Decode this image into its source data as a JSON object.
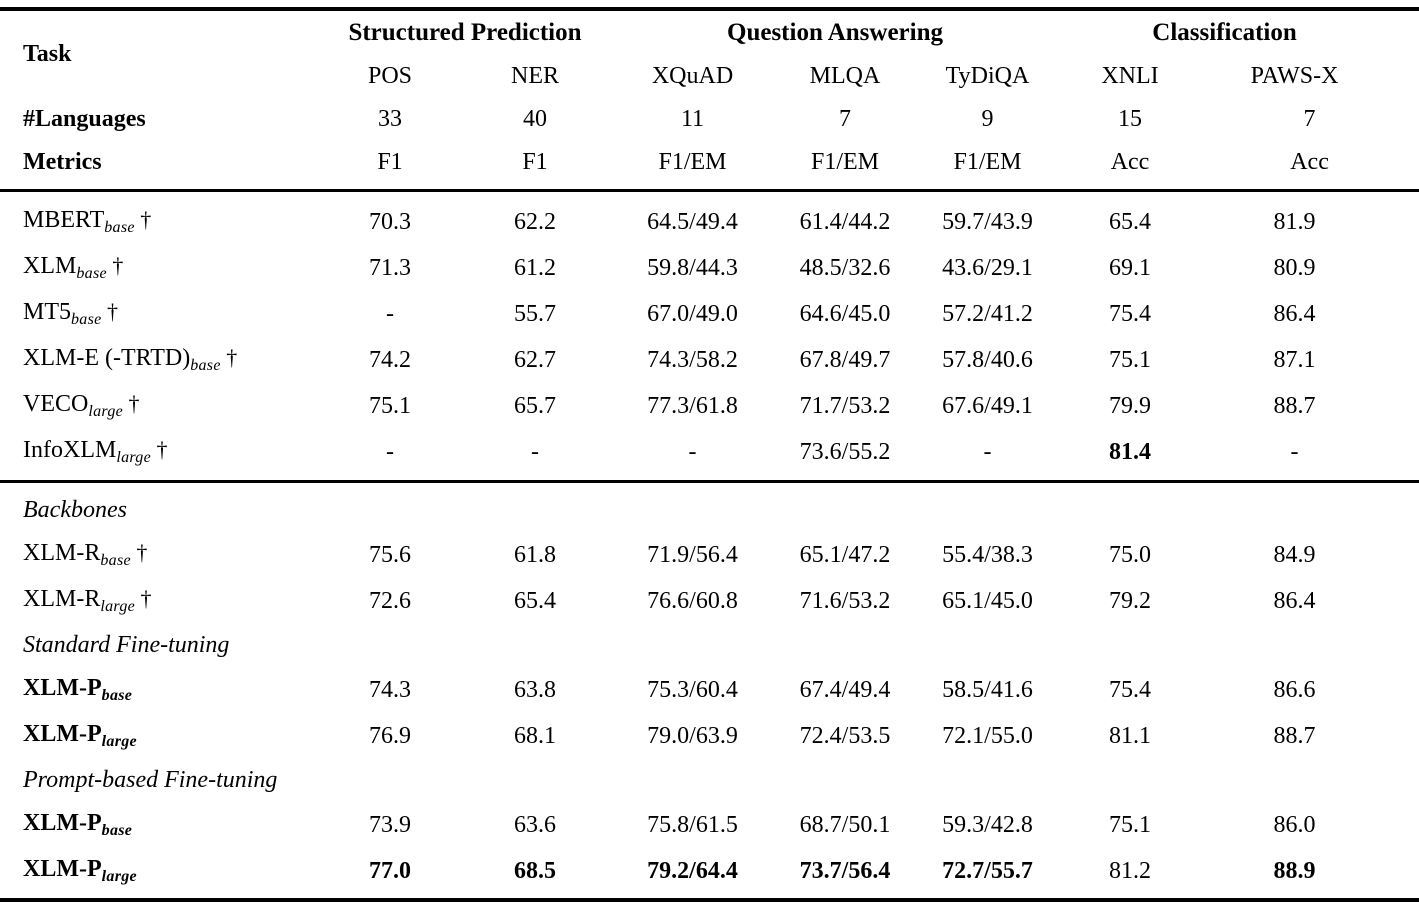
{
  "page": {
    "background": "#ffffff",
    "text_color": "#000000",
    "rule_color": "#000000"
  },
  "table": {
    "header": {
      "task_label": "Task",
      "languages_label": "#Languages",
      "metrics_label": "Metrics",
      "groups": [
        {
          "label": "Structured Prediction",
          "span": 2
        },
        {
          "label": "Question Answering",
          "span": 3
        },
        {
          "label": "Classification",
          "span": 2
        }
      ],
      "columns": [
        {
          "name": "POS",
          "languages": "33",
          "metric": "F1"
        },
        {
          "name": "NER",
          "languages": "40",
          "metric": "F1"
        },
        {
          "name": "XQuAD",
          "languages": "11",
          "metric": "F1/EM"
        },
        {
          "name": "MLQA",
          "languages": "7",
          "metric": "F1/EM"
        },
        {
          "name": "TyDiQA",
          "languages": "9",
          "metric": "F1/EM"
        },
        {
          "name": "XNLI",
          "languages": "15",
          "metric": "Acc"
        },
        {
          "name": "PAWS-X",
          "languages": "7",
          "metric": "Acc"
        }
      ]
    },
    "sections": [
      {
        "rows": [
          {
            "type": "model",
            "name": "MBERT",
            "subscript": "base",
            "dagger": true,
            "name_bold": false,
            "values": [
              {
                "text": "70.3"
              },
              {
                "text": "62.2"
              },
              {
                "text": "64.5/49.4"
              },
              {
                "text": "61.4/44.2"
              },
              {
                "text": "59.7/43.9"
              },
              {
                "text": "65.4"
              },
              {
                "text": "81.9"
              }
            ]
          },
          {
            "type": "model",
            "name": "XLM",
            "subscript": "base",
            "dagger": true,
            "name_bold": false,
            "values": [
              {
                "text": "71.3"
              },
              {
                "text": "61.2"
              },
              {
                "text": "59.8/44.3"
              },
              {
                "text": "48.5/32.6"
              },
              {
                "text": "43.6/29.1"
              },
              {
                "text": "69.1"
              },
              {
                "text": "80.9"
              }
            ]
          },
          {
            "type": "model",
            "name": "MT5",
            "subscript": "base",
            "dagger": true,
            "name_bold": false,
            "values": [
              {
                "text": "-"
              },
              {
                "text": "55.7"
              },
              {
                "text": "67.0/49.0"
              },
              {
                "text": "64.6/45.0"
              },
              {
                "text": "57.2/41.2"
              },
              {
                "text": "75.4"
              },
              {
                "text": "86.4"
              }
            ]
          },
          {
            "type": "model",
            "name": "XLM-E (-TRTD)",
            "subscript": "base",
            "dagger": true,
            "name_bold": false,
            "values": [
              {
                "text": "74.2"
              },
              {
                "text": "62.7"
              },
              {
                "text": "74.3/58.2"
              },
              {
                "text": "67.8/49.7"
              },
              {
                "text": "57.8/40.6"
              },
              {
                "text": "75.1"
              },
              {
                "text": "87.1"
              }
            ]
          },
          {
            "type": "model",
            "name": "VECO",
            "subscript": "large",
            "dagger": true,
            "name_bold": false,
            "values": [
              {
                "text": "75.1"
              },
              {
                "text": "65.7"
              },
              {
                "text": "77.3/61.8"
              },
              {
                "text": "71.7/53.2"
              },
              {
                "text": "67.6/49.1"
              },
              {
                "text": "79.9"
              },
              {
                "text": "88.7"
              }
            ]
          },
          {
            "type": "model",
            "name": "InfoXLM",
            "subscript": "large",
            "dagger": true,
            "name_bold": false,
            "values": [
              {
                "text": "-"
              },
              {
                "text": "-"
              },
              {
                "text": "-"
              },
              {
                "text": "73.6/55.2"
              },
              {
                "text": "-"
              },
              {
                "text": "81.4",
                "bold": true
              },
              {
                "text": "-"
              }
            ]
          }
        ]
      },
      {
        "rows": [
          {
            "type": "label",
            "label": "Backbones"
          },
          {
            "type": "model",
            "name": "XLM-R",
            "subscript": "base",
            "dagger": true,
            "name_bold": false,
            "values": [
              {
                "text": "75.6"
              },
              {
                "text": "61.8"
              },
              {
                "text": "71.9/56.4"
              },
              {
                "text": "65.1/47.2"
              },
              {
                "text": "55.4/38.3"
              },
              {
                "text": "75.0"
              },
              {
                "text": "84.9"
              }
            ]
          },
          {
            "type": "model",
            "name": "XLM-R",
            "subscript": "large",
            "dagger": true,
            "name_bold": false,
            "values": [
              {
                "text": "72.6"
              },
              {
                "text": "65.4"
              },
              {
                "text": "76.6/60.8"
              },
              {
                "text": "71.6/53.2"
              },
              {
                "text": "65.1/45.0"
              },
              {
                "text": "79.2"
              },
              {
                "text": "86.4"
              }
            ]
          },
          {
            "type": "label",
            "label": "Standard Fine-tuning"
          },
          {
            "type": "model",
            "name": "XLM-P",
            "subscript": "base",
            "dagger": false,
            "name_bold": true,
            "values": [
              {
                "text": "74.3"
              },
              {
                "text": "63.8"
              },
              {
                "text": "75.3/60.4"
              },
              {
                "text": "67.4/49.4"
              },
              {
                "text": "58.5/41.6"
              },
              {
                "text": "75.4"
              },
              {
                "text": "86.6"
              }
            ]
          },
          {
            "type": "model",
            "name": "XLM-P",
            "subscript": "large",
            "dagger": false,
            "name_bold": true,
            "values": [
              {
                "text": "76.9"
              },
              {
                "text": "68.1"
              },
              {
                "text": "79.0/63.9"
              },
              {
                "text": "72.4/53.5"
              },
              {
                "text": "72.1/55.0"
              },
              {
                "text": "81.1"
              },
              {
                "text": "88.7"
              }
            ]
          },
          {
            "type": "label",
            "label": "Prompt-based Fine-tuning"
          },
          {
            "type": "model",
            "name": "XLM-P",
            "subscript": "base",
            "dagger": false,
            "name_bold": true,
            "values": [
              {
                "text": "73.9"
              },
              {
                "text": "63.6"
              },
              {
                "text": "75.8/61.5"
              },
              {
                "text": "68.7/50.1"
              },
              {
                "text": "59.3/42.8"
              },
              {
                "text": "75.1"
              },
              {
                "text": "86.0"
              }
            ]
          },
          {
            "type": "model",
            "name": "XLM-P",
            "subscript": "large",
            "dagger": false,
            "name_bold": true,
            "values": [
              {
                "text": "77.0",
                "bold": true
              },
              {
                "text": "68.5",
                "bold": true
              },
              {
                "text": "79.2/64.4",
                "bold": true
              },
              {
                "text": "73.7/56.4",
                "bold": true
              },
              {
                "text": "72.7/55.7",
                "bold": true
              },
              {
                "text": "81.2"
              },
              {
                "text": "88.9",
                "bold": true
              }
            ]
          }
        ]
      }
    ]
  }
}
